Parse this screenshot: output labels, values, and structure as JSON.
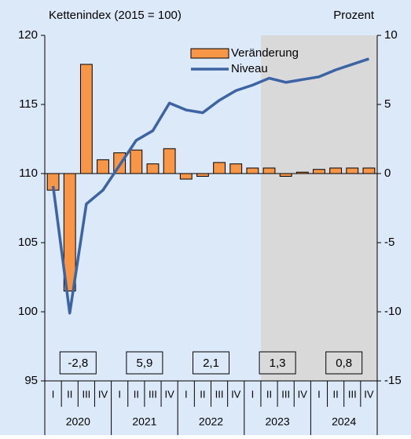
{
  "chart_data": {
    "type": "bar",
    "ylabel": "Kettenindex (2015 = 100)",
    "y2label": "Prozent",
    "categories": [
      "I",
      "II",
      "III",
      "IV",
      "I",
      "II",
      "III",
      "IV",
      "I",
      "II",
      "III",
      "IV",
      "I",
      "II",
      "III",
      "IV",
      "I",
      "II",
      "III",
      "IV"
    ],
    "years": [
      "2020",
      "2021",
      "2022",
      "2023",
      "2024"
    ],
    "series": [
      {
        "name": "Veränderung",
        "type": "bar",
        "axis": "y2",
        "color": "#f79646",
        "values": [
          -1.2,
          -8.5,
          7.9,
          1.0,
          1.5,
          1.7,
          0.7,
          1.8,
          -0.4,
          -0.2,
          0.8,
          0.7,
          0.4,
          0.4,
          -0.2,
          0.1,
          0.3,
          0.4,
          0.4,
          0.4
        ]
      },
      {
        "name": "Niveau",
        "type": "line",
        "axis": "y",
        "color": "#3c64a4",
        "values": [
          109.1,
          99.9,
          107.8,
          108.8,
          110.6,
          112.4,
          113.1,
          115.1,
          114.6,
          114.4,
          115.3,
          116.0,
          116.4,
          116.9,
          116.6,
          116.8,
          117.0,
          117.5,
          117.9,
          118.3
        ]
      }
    ],
    "annual": {
      "values": [
        -2.8,
        5.9,
        2.1,
        1.3,
        0.8
      ],
      "value_labels": [
        "-2,8",
        "5,9",
        "2,1",
        "1,3",
        "0,8"
      ]
    },
    "ylim": [
      95,
      120
    ],
    "yticks": [
      95,
      100,
      105,
      110,
      115,
      120
    ],
    "y2lim": [
      -15,
      10
    ],
    "y2ticks": [
      -15,
      -10,
      -5,
      0,
      5,
      10
    ],
    "legend": "top"
  }
}
